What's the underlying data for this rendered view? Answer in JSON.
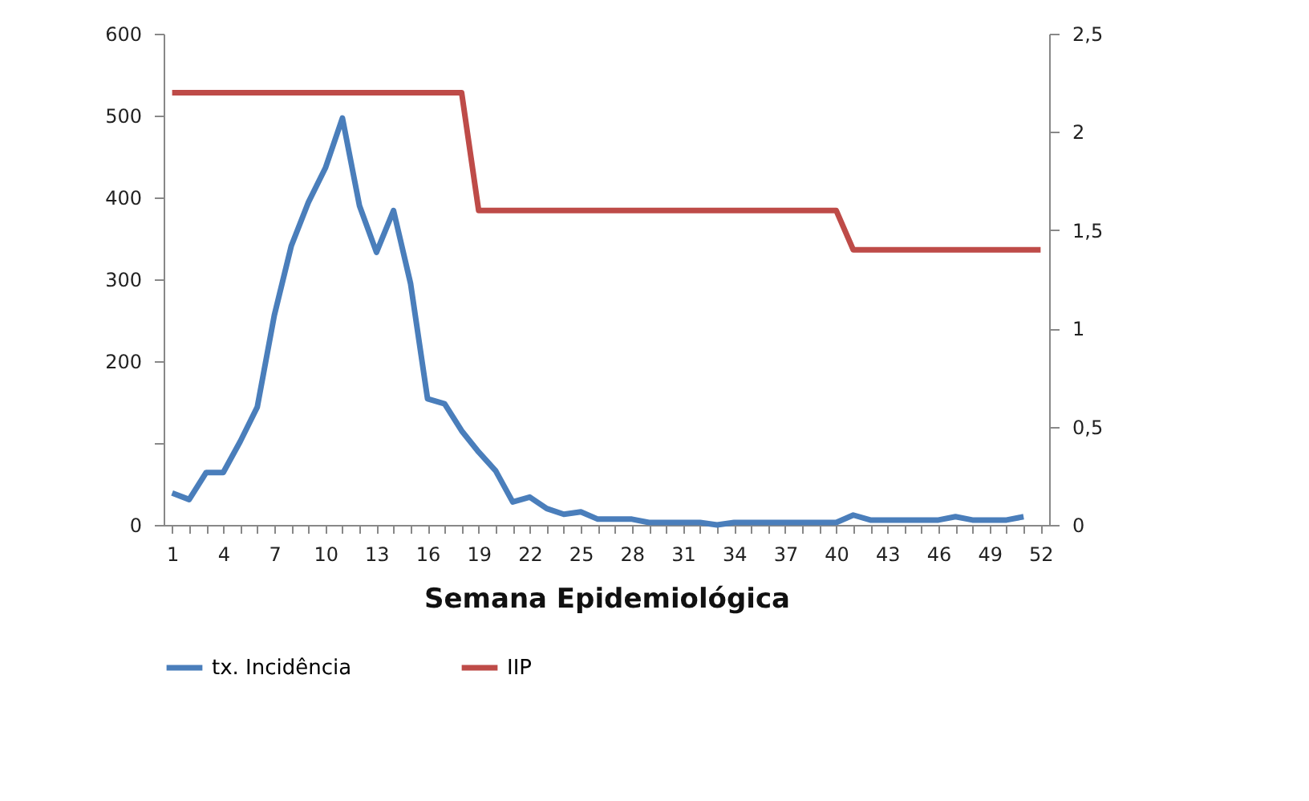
{
  "chart_data": {
    "type": "line",
    "xlabel": "Semana Epidemiológica",
    "categories": [
      "1",
      null,
      null,
      "4",
      null,
      null,
      "7",
      null,
      null,
      "10",
      null,
      null,
      "13",
      null,
      null,
      "16",
      null,
      null,
      "19",
      null,
      null,
      "22",
      null,
      null,
      "25",
      null,
      null,
      "28",
      null,
      null,
      "31",
      null,
      null,
      "34",
      null,
      null,
      "37",
      null,
      null,
      "40",
      null,
      null,
      "43",
      null,
      null,
      "46",
      null,
      null,
      "49",
      null,
      null,
      "52"
    ],
    "series": [
      {
        "name": "tx. Incidência",
        "color": "#4a7ebb",
        "values": [
          39,
          31,
          64,
          64,
          102,
          144,
          256,
          341,
          394,
          436,
          497,
          390,
          333,
          384,
          295,
          154,
          148,
          115,
          89,
          66,
          28,
          34,
          20,
          13,
          16,
          7,
          7,
          7,
          3,
          3,
          3,
          3,
          0,
          3,
          3,
          3,
          3,
          3,
          3,
          3,
          12,
          6,
          6,
          6,
          6,
          6,
          10,
          6,
          6,
          6,
          10,
          null
        ]
      },
      {
        "name": "IIP",
        "color": "#be4b48",
        "axis": "y2",
        "values": [
          2.2,
          2.2,
          2.2,
          2.2,
          2.2,
          2.2,
          2.2,
          2.2,
          2.2,
          2.2,
          2.2,
          2.2,
          2.2,
          2.2,
          2.2,
          2.2,
          2.2,
          2.2,
          1.6,
          1.6,
          1.6,
          1.6,
          1.6,
          1.6,
          1.6,
          1.6,
          1.6,
          1.6,
          1.6,
          1.6,
          1.6,
          1.6,
          1.6,
          1.6,
          1.6,
          1.6,
          1.6,
          1.6,
          1.6,
          1.6,
          1.4,
          1.4,
          1.4,
          1.4,
          1.4,
          1.4,
          1.4,
          1.4,
          1.4,
          1.4,
          1.4,
          1.4
        ]
      }
    ],
    "ylim": [
      0,
      600
    ],
    "yticks": [
      0,
      {
        "value": 100,
        "label": null
      },
      200,
      300,
      400,
      500,
      600
    ],
    "y2lim": [
      0,
      2.5
    ],
    "y2ticks": [
      0,
      {
        "value": 0.5,
        "label": "0,5"
      },
      1,
      {
        "value": 1.5,
        "label": "1,5"
      },
      2,
      {
        "value": 2.5,
        "label": "2,5"
      }
    ],
    "legend": "bottom",
    "grid": false,
    "marker": "none",
    "line_style": "solid"
  }
}
